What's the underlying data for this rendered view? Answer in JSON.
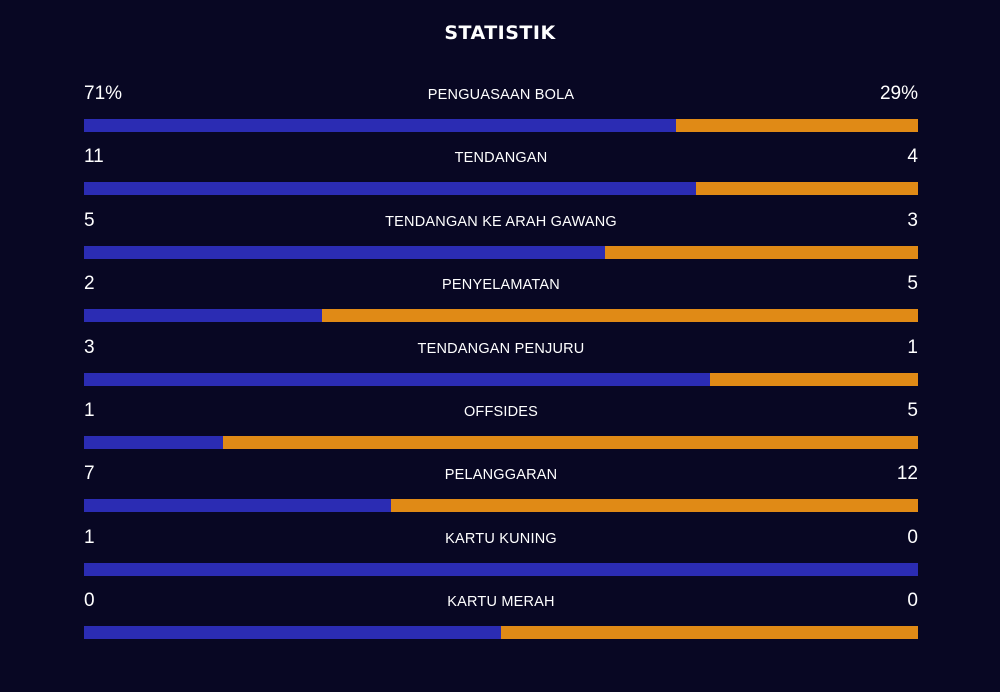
{
  "title": "STATISTIK",
  "colors": {
    "background": "#080723",
    "home": "#2b2cb3",
    "away": "#e08a16"
  },
  "stats": [
    {
      "label": "PENGUASAAN BOLA",
      "home": "71%",
      "away": "29%",
      "home_value": 71,
      "away_value": 29
    },
    {
      "label": "TENDANGAN",
      "home": "11",
      "away": "4",
      "home_value": 11,
      "away_value": 4
    },
    {
      "label": "TENDANGAN KE ARAH GAWANG",
      "home": "5",
      "away": "3",
      "home_value": 5,
      "away_value": 3
    },
    {
      "label": "PENYELAMATAN",
      "home": "2",
      "away": "5",
      "home_value": 2,
      "away_value": 5
    },
    {
      "label": "TENDANGAN PENJURU",
      "home": "3",
      "away": "1",
      "home_value": 3,
      "away_value": 1
    },
    {
      "label": "OFFSIDES",
      "home": "1",
      "away": "5",
      "home_value": 1,
      "away_value": 5
    },
    {
      "label": "PELANGGARAN",
      "home": "7",
      "away": "12",
      "home_value": 7,
      "away_value": 12
    },
    {
      "label": "KARTU KUNING",
      "home": "1",
      "away": "0",
      "home_value": 1,
      "away_value": 0
    },
    {
      "label": "KARTU MERAH",
      "home": "0",
      "away": "0",
      "home_value": 0,
      "away_value": 0
    }
  ]
}
